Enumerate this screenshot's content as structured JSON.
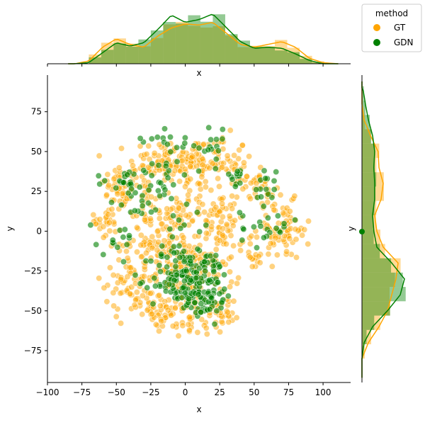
{
  "chart_data": {
    "type": "scatter",
    "subtype": "joint-plot",
    "title": "",
    "xlabel": "x",
    "ylabel": "y",
    "xlim": [
      -100,
      120
    ],
    "ylim": [
      -95,
      98
    ],
    "x_ticks": [
      -100,
      -75,
      -50,
      -25,
      0,
      25,
      50,
      75,
      100
    ],
    "x_tick_labels": [
      "−100",
      "−75",
      "−50",
      "−25",
      "0",
      "25",
      "50",
      "75",
      "100"
    ],
    "y_ticks": [
      -75,
      -50,
      -25,
      0,
      25,
      50,
      75
    ],
    "y_tick_labels": [
      "−75",
      "−50",
      "−25",
      "0",
      "25",
      "50",
      "75"
    ],
    "grid": false,
    "marginal_top_xlabel": "x",
    "marginal_right_ylabel": "y",
    "legend": {
      "title": "method",
      "placement": "top-right",
      "entries": [
        {
          "label": "GT",
          "color": "#ffa500"
        },
        {
          "label": "GDN",
          "color": "#008000"
        }
      ]
    },
    "series": [
      {
        "name": "GT",
        "color": "#ffa500",
        "point_alpha": 0.5,
        "clusters": [
          {
            "cx": -47,
            "cy": 28,
            "sx": 7,
            "sy": 7,
            "n": 50
          },
          {
            "cx": -18,
            "cy": 44,
            "sx": 11,
            "sy": 7,
            "n": 70
          },
          {
            "cx": 5,
            "cy": 42,
            "sx": 8,
            "sy": 9,
            "n": 45
          },
          {
            "cx": 22,
            "cy": 44,
            "sx": 12,
            "sy": 8,
            "n": 60
          },
          {
            "cx": 42,
            "cy": 33,
            "sx": 7,
            "sy": 6,
            "n": 30
          },
          {
            "cx": -56,
            "cy": 7,
            "sx": 5,
            "sy": 7,
            "n": 30
          },
          {
            "cx": -40,
            "cy": -30,
            "sx": 9,
            "sy": 12,
            "n": 70
          },
          {
            "cx": -20,
            "cy": -5,
            "sx": 12,
            "sy": 10,
            "n": 70
          },
          {
            "cx": -5,
            "cy": -30,
            "sx": 15,
            "sy": 13,
            "n": 110
          },
          {
            "cx": 15,
            "cy": -20,
            "sx": 12,
            "sy": 15,
            "n": 90
          },
          {
            "cx": 5,
            "cy": -55,
            "sx": 10,
            "sy": 5,
            "n": 40
          },
          {
            "cx": 25,
            "cy": -55,
            "sx": 5,
            "sy": 7,
            "n": 25
          },
          {
            "cx": -20,
            "cy": -52,
            "sx": 7,
            "sy": 5,
            "n": 25
          },
          {
            "cx": 70,
            "cy": 0,
            "sx": 10,
            "sy": 9,
            "n": 80
          },
          {
            "cx": 58,
            "cy": 23,
            "sx": 5,
            "sy": 6,
            "n": 20
          },
          {
            "cx": 25,
            "cy": 10,
            "sx": 9,
            "sy": 10,
            "n": 45
          },
          {
            "cx": 0,
            "cy": 15,
            "sx": 12,
            "sy": 8,
            "n": 45
          },
          {
            "cx": -30,
            "cy": 20,
            "sx": 7,
            "sy": 8,
            "n": 25
          },
          {
            "cx": 48,
            "cy": -12,
            "sx": 5,
            "sy": 6,
            "n": 15
          }
        ]
      },
      {
        "name": "GDN",
        "color": "#008000",
        "point_alpha": 0.6,
        "clusters": [
          {
            "cx": -5,
            "cy": -30,
            "sx": 10,
            "sy": 10,
            "n": 90
          },
          {
            "cx": 15,
            "cy": -32,
            "sx": 10,
            "sy": 10,
            "n": 90
          },
          {
            "cx": -20,
            "cy": 33,
            "sx": 12,
            "sy": 8,
            "n": 30
          },
          {
            "cx": -10,
            "cy": 58,
            "sx": 10,
            "sy": 4,
            "n": 15
          },
          {
            "cx": 20,
            "cy": 52,
            "sx": 5,
            "sy": 6,
            "n": 15
          },
          {
            "cx": 35,
            "cy": 35,
            "sx": 5,
            "sy": 3,
            "n": 12
          },
          {
            "cx": -45,
            "cy": 30,
            "sx": 10,
            "sy": 6,
            "n": 20
          },
          {
            "cx": 58,
            "cy": 28,
            "sx": 4,
            "sy": 6,
            "n": 15
          },
          {
            "cx": 60,
            "cy": 2,
            "sx": 10,
            "sy": 6,
            "n": 22
          },
          {
            "cx": -50,
            "cy": -3,
            "sx": 8,
            "sy": 7,
            "n": 15
          },
          {
            "cx": -30,
            "cy": 12,
            "sx": 5,
            "sy": 3,
            "n": 8
          },
          {
            "cx": 15,
            "cy": -45,
            "sx": 8,
            "sy": 5,
            "n": 20
          },
          {
            "cx": 0,
            "cy": 5,
            "sx": 10,
            "sy": 8,
            "n": 15
          }
        ]
      }
    ],
    "marginal_x_density": {
      "GT": {
        "x": [
          -80,
          -70,
          -60,
          -50,
          -40,
          -30,
          -20,
          -10,
          0,
          10,
          20,
          30,
          40,
          50,
          60,
          70,
          80,
          90,
          100,
          110
        ],
        "density": [
          0.0,
          0.05,
          0.3,
          0.45,
          0.35,
          0.3,
          0.5,
          0.65,
          0.72,
          0.7,
          0.75,
          0.55,
          0.35,
          0.3,
          0.35,
          0.4,
          0.3,
          0.1,
          0.02,
          0.0
        ]
      },
      "GDN": {
        "x": [
          -80,
          -70,
          -60,
          -50,
          -40,
          -30,
          -20,
          -10,
          0,
          10,
          20,
          30,
          40,
          50,
          60,
          70,
          80,
          90,
          100,
          110
        ],
        "density": [
          0.0,
          0.02,
          0.2,
          0.38,
          0.32,
          0.38,
          0.62,
          0.88,
          0.75,
          0.8,
          0.9,
          0.65,
          0.4,
          0.28,
          0.3,
          0.28,
          0.18,
          0.06,
          0.0,
          0.0
        ]
      }
    },
    "marginal_y_density": {
      "GT": {
        "y": [
          -80,
          -70,
          -60,
          -50,
          -40,
          -30,
          -20,
          -10,
          0,
          10,
          20,
          30,
          40,
          50,
          60,
          70,
          80
        ],
        "density": [
          0.0,
          0.15,
          0.4,
          0.6,
          0.7,
          0.8,
          0.85,
          0.5,
          0.35,
          0.3,
          0.45,
          0.5,
          0.4,
          0.38,
          0.2,
          0.05,
          0.0
        ]
      },
      "GDN": {
        "y": [
          -80,
          -70,
          -60,
          -50,
          -40,
          -30,
          -20,
          -10,
          0,
          10,
          20,
          30,
          40,
          50,
          60,
          70,
          80,
          90
        ],
        "density": [
          0.0,
          0.05,
          0.25,
          0.6,
          0.9,
          1.0,
          0.7,
          0.35,
          0.28,
          0.25,
          0.3,
          0.3,
          0.28,
          0.3,
          0.25,
          0.15,
          0.08,
          0.02
        ]
      }
    }
  }
}
